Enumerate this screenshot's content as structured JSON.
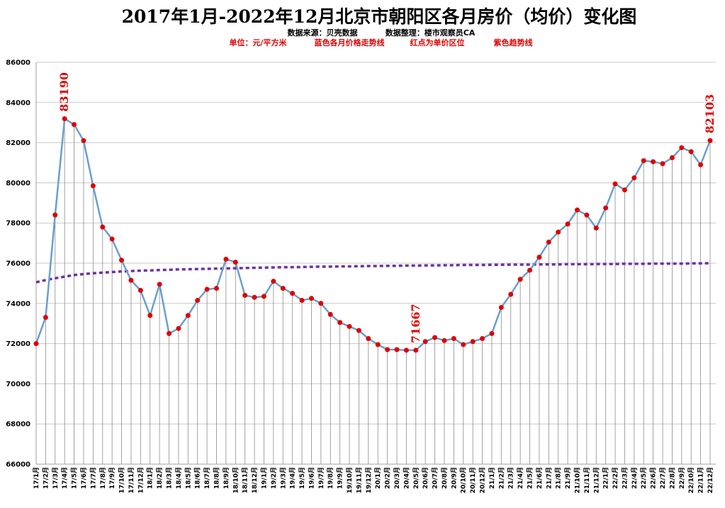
{
  "chart_data": {
    "type": "line",
    "title": "2017年1月-2022年12月北京市朝阳区各月房价（均价）变化图",
    "subtitle_lines": [
      [
        "数据来源：贝壳数据",
        "数据整理：楼市观察员CA"
      ],
      [
        "单位：元/平方米",
        "蓝色各月价格走势线",
        "红点为单价区位",
        "紫色趋势线"
      ]
    ],
    "ylim": [
      66000,
      86000
    ],
    "yticks": [
      66000,
      68000,
      70000,
      72000,
      74000,
      76000,
      78000,
      80000,
      82000,
      84000,
      86000
    ],
    "categories": [
      "17/1月",
      "17/2月",
      "17/3月",
      "17/4月",
      "17/5月",
      "17/6月",
      "17/7月",
      "17/8月",
      "17/9月",
      "17/10月",
      "17/11月",
      "17/12月",
      "18/1月",
      "18/2月",
      "18/3月",
      "18/4月",
      "18/5月",
      "18/6月",
      "18/7月",
      "18/8月",
      "18/9月",
      "18/10月",
      "18/11月",
      "18/12月",
      "19/1月",
      "19/2月",
      "19/3月",
      "19/4月",
      "19/5月",
      "19/6月",
      "19/7月",
      "19/8月",
      "19/9月",
      "19/10月",
      "19/11月",
      "19/12月",
      "20/1月",
      "20/2月",
      "20/3月",
      "20/4月",
      "20/5月",
      "20/6月",
      "20/7月",
      "20/8月",
      "20/9月",
      "20/10月",
      "20/11月",
      "20/12月",
      "21/1月",
      "21/2月",
      "21/3月",
      "21/4月",
      "21/5月",
      "21/6月",
      "21/7月",
      "21/8月",
      "21/9月",
      "21/10月",
      "21/11月",
      "21/12月",
      "22/1月",
      "22/2月",
      "22/3月",
      "22/4月",
      "22/5月",
      "22/6月",
      "22/7月",
      "22/8月",
      "22/9月",
      "22/10月",
      "22/11月",
      "22/12月"
    ],
    "series": [
      {
        "values": [
          72000,
          73300,
          78400,
          83190,
          82900,
          82100,
          79850,
          77800,
          77200,
          76150,
          75150,
          74650,
          73400,
          74950,
          72500,
          72750,
          73400,
          74150,
          74700,
          74750,
          76200,
          76050,
          74400,
          74300,
          74350,
          75100,
          74750,
          74500,
          74150,
          74250,
          74000,
          73450,
          73050,
          72850,
          72650,
          72250,
          71950,
          71700,
          71700,
          71667,
          71667,
          72100,
          72300,
          72150,
          72250,
          71950,
          72100,
          72250,
          72500,
          73800,
          74450,
          75200,
          75650,
          76300,
          77050,
          77550,
          77950,
          78650,
          78400,
          77750,
          78750,
          79950,
          79650,
          80250,
          81100,
          81050,
          80950,
          81250,
          81750,
          81550,
          80900,
          82103
        ],
        "color": "#6a9fcd",
        "marker_color": "#e00000"
      },
      {
        "type": "trend",
        "color": "#7030a0",
        "values": [
          75050,
          75160,
          75250,
          75330,
          75410,
          75460,
          75500,
          75530,
          75560,
          75590,
          75610,
          75630,
          75640,
          75660,
          75670,
          75690,
          75700,
          75710,
          75720,
          75730,
          75740,
          75750,
          75760,
          75770,
          75780,
          75790,
          75800,
          75800,
          75810,
          75820,
          75830,
          75830,
          75840,
          75840,
          75850,
          75860,
          75860,
          75870,
          75870,
          75880,
          75880,
          75890,
          75890,
          75900,
          75900,
          75910,
          75910,
          75910,
          75920,
          75920,
          75930,
          75930,
          75930,
          75940,
          75940,
          75940,
          75950,
          75950,
          75950,
          75960,
          75960,
          75960,
          75970,
          75970,
          75970,
          75980,
          75980,
          75980,
          75980,
          75990,
          75990,
          76000
        ]
      }
    ],
    "annotations": [
      {
        "label": "83190",
        "index": 3
      },
      {
        "label": "71667",
        "index": 40
      },
      {
        "label": "82103",
        "index": 71
      }
    ],
    "grid": {
      "horizontal": true,
      "vertical_drop_lines": true
    },
    "legend": "none"
  }
}
